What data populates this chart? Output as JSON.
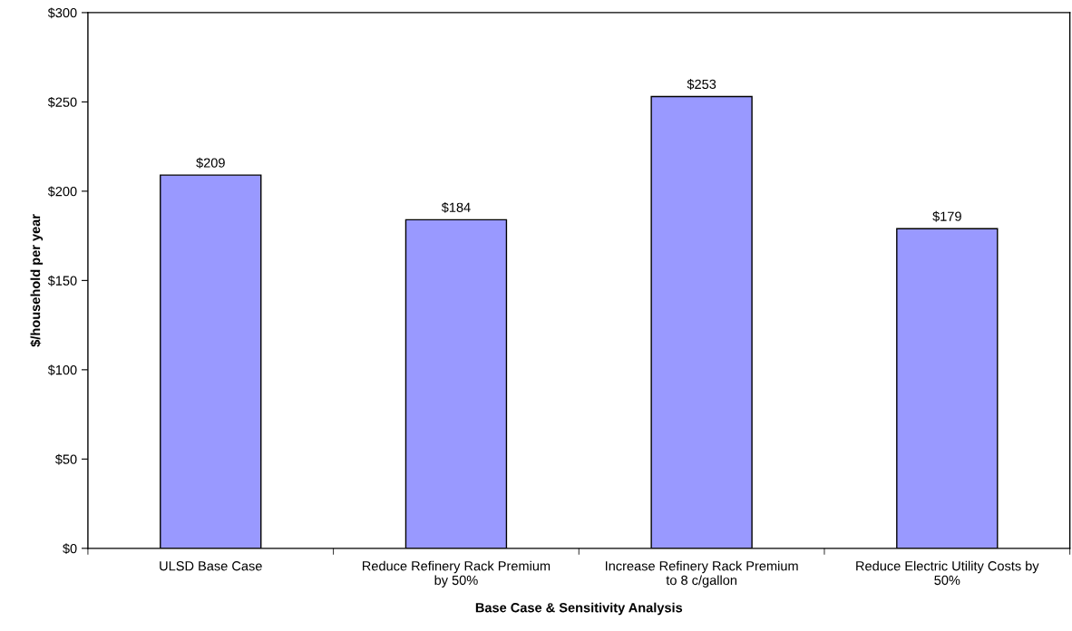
{
  "chart_data": {
    "type": "bar",
    "xlabel": "Base Case & Sensitivity Analysis",
    "ylabel": "$/household per year",
    "categories": [
      "ULSD Base Case",
      "Reduce Refinery Rack Premium\nby 50%",
      "Increase Refinery Rack Premium\nto 8 c/gallon",
      "Reduce Electric Utility Costs by\n50%"
    ],
    "values": [
      209,
      184,
      253,
      179
    ],
    "value_labels": [
      "$209",
      "$184",
      "$253",
      "$179"
    ],
    "color": "#9999ff",
    "ylim": [
      0,
      300
    ],
    "yticks": [
      {
        "value": 0,
        "label": "$0"
      },
      {
        "value": 50,
        "label": "$50"
      },
      {
        "value": 100,
        "label": "$100"
      },
      {
        "value": 150,
        "label": "$150"
      },
      {
        "value": 200,
        "label": "$200"
      },
      {
        "value": 250,
        "label": "$250"
      },
      {
        "value": 300,
        "label": "$300"
      }
    ],
    "grid": false
  }
}
